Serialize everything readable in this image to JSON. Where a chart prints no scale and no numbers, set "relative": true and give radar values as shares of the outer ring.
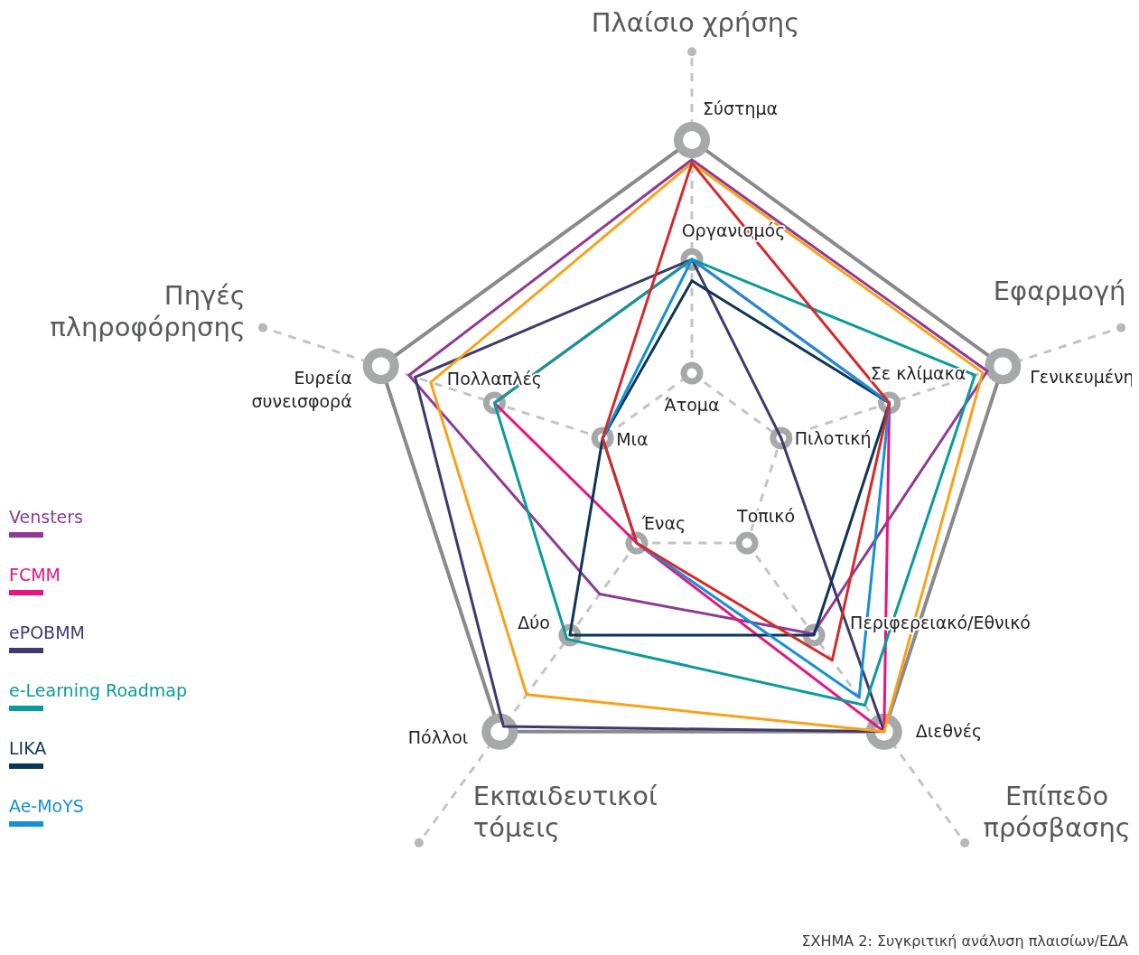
{
  "chart_data": {
    "type": "radar",
    "relative": true,
    "legend": "left",
    "categories": [
      "Πλαίσιο χρήσης",
      "Εφαρμογή",
      "Επίπεδο\nπρόσβασης",
      "Εκπαιδευτικοί\nτόμεις",
      "Πηγές\nπληροφόρησης"
    ],
    "series": [
      {
        "name": "Vensters",
        "color": "#8e3a96",
        "values": [
          0.94,
          0.95,
          0.63,
          0.48,
          0.91
        ]
      },
      {
        "name": "FCMM",
        "color": "#e6157f",
        "values": [
          0.635,
          0.635,
          1,
          0.287,
          0.635
        ]
      },
      {
        "name": "ePOBMM",
        "color": "#3e3a6e",
        "values": [
          0.635,
          0.287,
          1,
          0.98,
          0.89
        ]
      },
      {
        "name": "e-Learning Roadmap",
        "color": "#0a9b9b",
        "values": [
          0.635,
          0.91,
          0.9,
          0.65,
          0.635
        ]
      },
      {
        "name": "LIKA",
        "color": "#0d3558",
        "values": [
          0.57,
          0.635,
          0.635,
          0.635,
          0.287
        ]
      },
      {
        "name": "Ae-MoYS",
        "color": "#1590d5",
        "values": [
          0.635,
          0.635,
          0.87,
          0.287,
          0.287
        ]
      },
      {
        "color": "#f7a21b",
        "values": [
          0.93,
          0.935,
          1,
          0.86,
          0.84
        ]
      },
      {
        "color": "#d42a2a",
        "values": [
          0.93,
          0.635,
          0.73,
          0.287,
          0.287
        ]
      }
    ],
    "annotations": [
      {
        "text": "Άτομα",
        "x": "Πλαίσιο χρήσης"
      },
      {
        "text": "Οργανισμός",
        "x": "Πλαίσιο χρήσης"
      },
      {
        "text": "Σύστημα",
        "x": "Πλαίσιο χρήσης"
      },
      {
        "text": "Πιλοτική",
        "x": "Εφαρμογή"
      },
      {
        "text": "Σε κλίμακα",
        "x": "Εφαρμογή"
      },
      {
        "text": "Γενικευμένη",
        "x": "Εφαρμογή"
      },
      {
        "text": "Τοπικό",
        "x": "Επίπεδο\nπρόσβασης"
      },
      {
        "text": "Περιφερειακό/Εθνικό",
        "x": "Επίπεδο\nπρόσβασης"
      },
      {
        "text": "Διεθνές",
        "x": "Επίπεδο\nπρόσβασης"
      },
      {
        "text": "Ένας",
        "x": "Εκπαιδευτικοί\nτόμεις"
      },
      {
        "text": "Δύο",
        "x": "Εκπαιδευτικοί\nτόμεις"
      },
      {
        "text": "Πόλλοι",
        "x": "Εκπαιδευτικοί\nτόμεις"
      },
      {
        "text": "Μια",
        "x": "Πηγές\nπληροφόρησης"
      },
      {
        "text": "Πολλαπλές",
        "x": "Πηγές\nπληροφόρησης"
      },
      {
        "text": "Ευρεία\nσυνεισφορά",
        "x": "Πηγές\nπληροφόρησης"
      },
      "ΣΧΗΜΑ 2: Συγκριτική ανάλυση πλαισίων/ΕΔΑ"
    ]
  }
}
